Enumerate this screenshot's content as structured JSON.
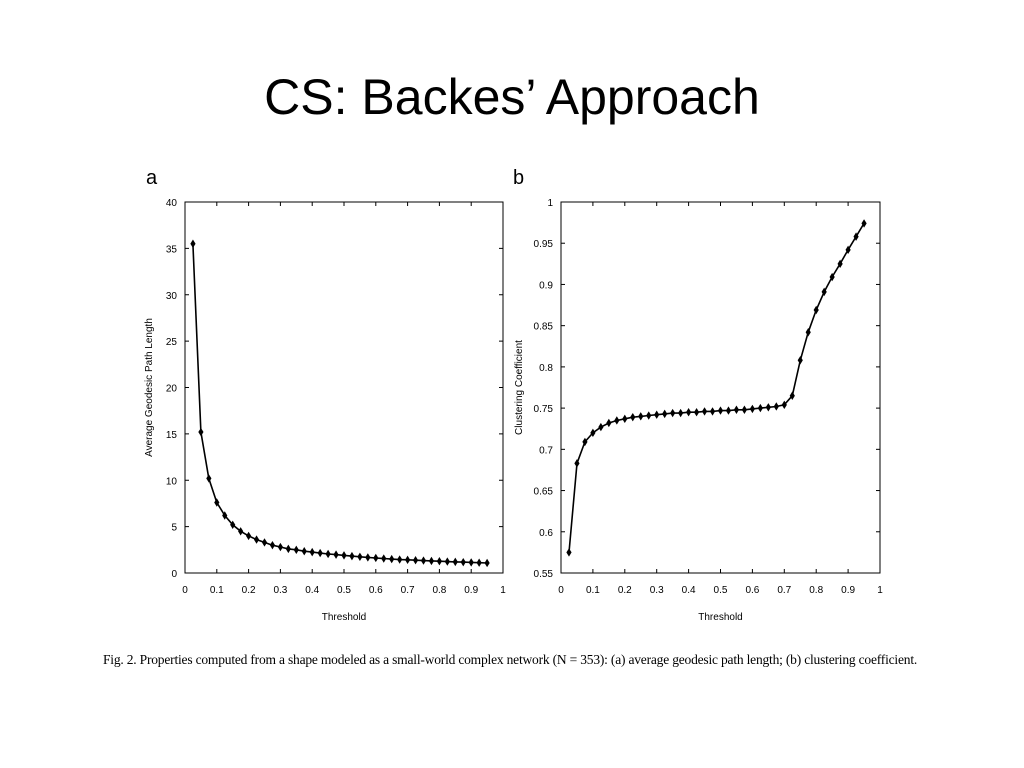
{
  "slide": {
    "title": "CS: Backes’ Approach"
  },
  "figure": {
    "caption": "Fig. 2. Properties computed from a shape modeled as a small-world complex network (N = 353): (a) average geodesic path length; (b) clustering coefficient."
  },
  "chart_data": [
    {
      "type": "line",
      "panel_label": "a",
      "xlabel": "Threshold",
      "ylabel": "Average Geodesic Path Length",
      "xlim": [
        0,
        1
      ],
      "ylim": [
        0,
        40
      ],
      "xticks": [
        "0",
        "0.1",
        "0.2",
        "0.3",
        "0.4",
        "0.5",
        "0.6",
        "0.7",
        "0.8",
        "0.9",
        "1"
      ],
      "yticks": [
        "0",
        "5",
        "10",
        "15",
        "20",
        "25",
        "30",
        "35",
        "40"
      ],
      "grid": false,
      "x": [
        0.025,
        0.05,
        0.075,
        0.1,
        0.125,
        0.15,
        0.175,
        0.2,
        0.225,
        0.25,
        0.275,
        0.3,
        0.325,
        0.35,
        0.375,
        0.4,
        0.425,
        0.45,
        0.475,
        0.5,
        0.525,
        0.55,
        0.575,
        0.6,
        0.625,
        0.65,
        0.675,
        0.7,
        0.725,
        0.75,
        0.775,
        0.8,
        0.825,
        0.85,
        0.875,
        0.9,
        0.925,
        0.95
      ],
      "y": [
        35.5,
        15.2,
        10.2,
        7.6,
        6.2,
        5.2,
        4.5,
        4.0,
        3.6,
        3.3,
        3.0,
        2.8,
        2.6,
        2.5,
        2.35,
        2.25,
        2.15,
        2.05,
        1.98,
        1.9,
        1.82,
        1.75,
        1.68,
        1.62,
        1.56,
        1.5,
        1.45,
        1.42,
        1.38,
        1.34,
        1.3,
        1.27,
        1.23,
        1.2,
        1.17,
        1.14,
        1.11,
        1.08
      ]
    },
    {
      "type": "line",
      "panel_label": "b",
      "xlabel": "Threshold",
      "ylabel": "Clustering Coefficient",
      "xlim": [
        0,
        1
      ],
      "ylim": [
        0.55,
        1
      ],
      "xticks": [
        "0",
        "0.1",
        "0.2",
        "0.3",
        "0.4",
        "0.5",
        "0.6",
        "0.7",
        "0.8",
        "0.9",
        "1"
      ],
      "yticks": [
        "0.55",
        "0.6",
        "0.65",
        "0.7",
        "0.75",
        "0.8",
        "0.85",
        "0.9",
        "0.95",
        "1"
      ],
      "grid": false,
      "x": [
        0.025,
        0.05,
        0.075,
        0.1,
        0.125,
        0.15,
        0.175,
        0.2,
        0.225,
        0.25,
        0.275,
        0.3,
        0.325,
        0.35,
        0.375,
        0.4,
        0.425,
        0.45,
        0.475,
        0.5,
        0.525,
        0.55,
        0.575,
        0.6,
        0.625,
        0.65,
        0.675,
        0.7,
        0.725,
        0.75,
        0.775,
        0.8,
        0.825,
        0.85,
        0.875,
        0.9,
        0.925,
        0.95
      ],
      "y": [
        0.575,
        0.683,
        0.709,
        0.72,
        0.727,
        0.732,
        0.735,
        0.737,
        0.739,
        0.74,
        0.741,
        0.742,
        0.743,
        0.744,
        0.744,
        0.745,
        0.745,
        0.746,
        0.746,
        0.747,
        0.747,
        0.748,
        0.748,
        0.749,
        0.75,
        0.751,
        0.752,
        0.754,
        0.765,
        0.808,
        0.842,
        0.869,
        0.891,
        0.909,
        0.925,
        0.942,
        0.958,
        0.974
      ]
    }
  ]
}
